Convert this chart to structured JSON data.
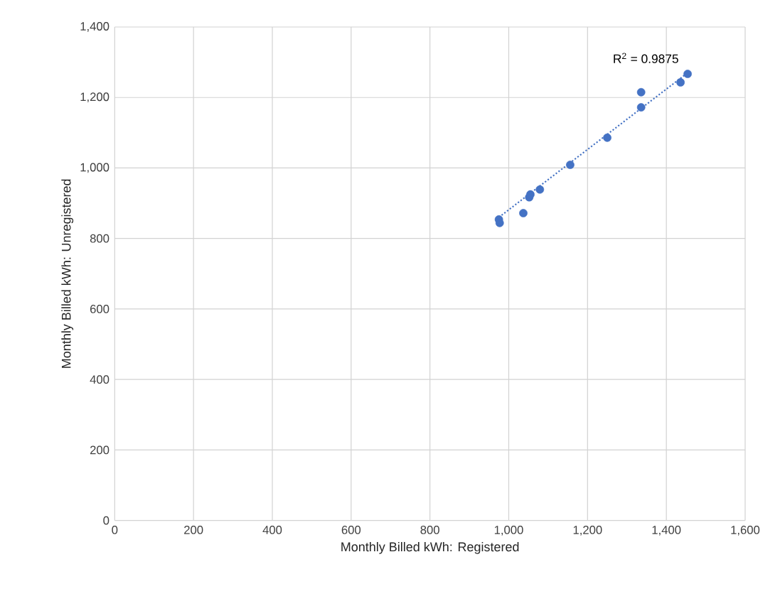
{
  "chart_data": {
    "type": "scatter",
    "xlabel": "Monthly Billed kWh: Registered",
    "ylabel": "Monthly Billed kWh: Unregistered",
    "x": [
      975,
      977,
      1037,
      1052,
      1055,
      1079,
      1156,
      1250,
      1336,
      1336,
      1436,
      1454
    ],
    "series": [
      {
        "color": "#4472c4",
        "marker": "circle",
        "values": [
          854,
          844,
          872,
          917,
          925,
          939,
          1009,
          1086,
          1172,
          1215,
          1243,
          1267
        ]
      },
      {
        "type": "line",
        "color": "#4472c4",
        "line_style": "dotted",
        "marker": "none",
        "x": [
          975,
          1454
        ],
        "values": [
          860,
          1270
        ]
      }
    ],
    "annotations": [
      "R$^{2}$ = 0.9875"
    ],
    "xlim": [
      0,
      1600
    ],
    "ylim": [
      0,
      1400
    ],
    "xticks": [
      {
        "value": 0,
        "label": "0"
      },
      {
        "value": 200,
        "label": "200"
      },
      {
        "value": 400,
        "label": "400"
      },
      {
        "value": 600,
        "label": "600"
      },
      {
        "value": 800,
        "label": "800"
      },
      {
        "value": 1000,
        "label": "1,000"
      },
      {
        "value": 1200,
        "label": "1,200"
      },
      {
        "value": 1400,
        "label": "1,400"
      },
      {
        "value": 1600,
        "label": "1,600"
      }
    ],
    "yticks": [
      {
        "value": 0,
        "label": "0"
      },
      {
        "value": 200,
        "label": "200"
      },
      {
        "value": 400,
        "label": "400"
      },
      {
        "value": 600,
        "label": "600"
      },
      {
        "value": 800,
        "label": "800"
      },
      {
        "value": 1000,
        "label": "1,000"
      },
      {
        "value": 1200,
        "label": "1,200"
      },
      {
        "value": 1400,
        "label": "1,400"
      }
    ],
    "grid": true
  }
}
